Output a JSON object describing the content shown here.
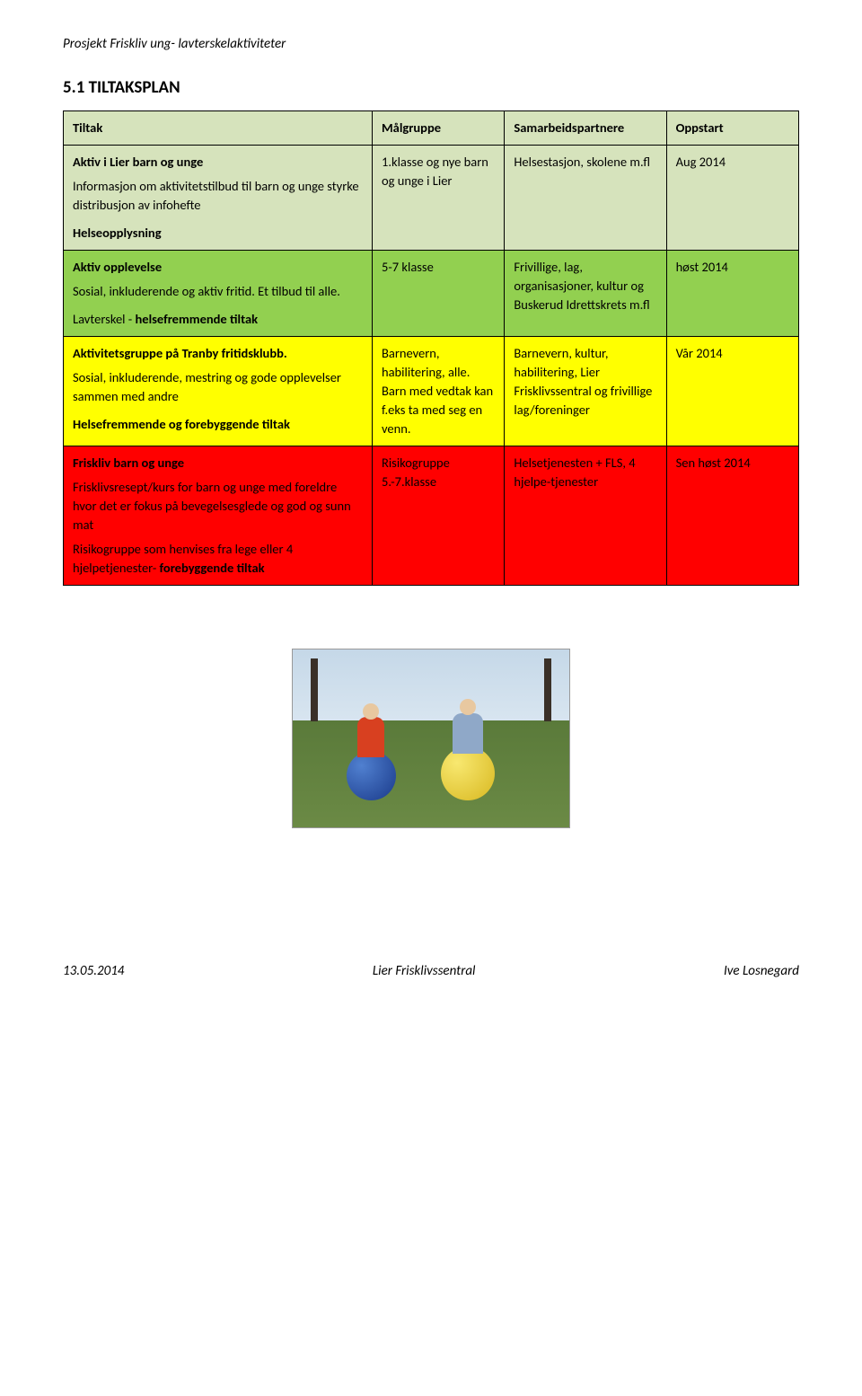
{
  "header": "Prosjekt Friskliv ung- lavterskelaktiviteter",
  "section_title": "5.1 TILTAKSPLAN",
  "table": {
    "head": {
      "c1": "Tiltak",
      "c2": "Målgruppe",
      "c3": "Samarbeidspartnere",
      "c4": "Oppstart"
    },
    "row_head_bg": "#d6e3bc",
    "rows": [
      {
        "bg": "#d6e3bc",
        "tiltak_title": "Aktiv i Lier barn og unge",
        "tiltak_body": "Informasjon om aktivitetstilbud til barn og unge styrke distribusjon av infohefte",
        "tiltak_sub": "Helseopplysning",
        "malgruppe": "1.klasse og nye barn og unge i Lier",
        "samarbeid": "Helsestasjon, skolene m.fl",
        "oppstart": "Aug 2014"
      },
      {
        "bg": "#92d050",
        "tiltak_title": "Aktiv opplevelse",
        "tiltak_body": "Sosial, inkluderende og aktiv fritid. Et tilbud til alle.",
        "tiltak_sub_prefix": "Lavterskel - ",
        "tiltak_sub": "helsefremmende tiltak",
        "malgruppe": "5-7 klasse",
        "samarbeid": "Frivillige, lag, organisasjoner, kultur og Buskerud Idrettskrets m.fl",
        "oppstart": "høst 2014"
      },
      {
        "bg": "#ffff00",
        "tiltak_title": "Aktivitetsgruppe på Tranby fritidsklubb.",
        "tiltak_body": "Sosial, inkluderende, mestring og gode opplevelser sammen med andre",
        "tiltak_sub": "Helsefremmende og forebyggende tiltak",
        "malgruppe": "Barnevern, habilitering, alle. Barn med vedtak kan f.eks ta med seg en venn.",
        "samarbeid": "Barnevern, kultur, habilitering, Lier Frisklivssentral og frivillige lag/foreninger",
        "oppstart": "Vår 2014"
      },
      {
        "bg": "#ff0000",
        "tiltak_title": "Friskliv barn og unge",
        "tiltak_body": "Frisklivsresept/kurs for barn og unge med foreldre hvor det er fokus på bevegelsesglede og god og sunn mat",
        "tiltak_body2_prefix": "Risikogruppe som henvises fra lege eller 4 hjelpetjenester- ",
        "tiltak_body2_bold": "forebyggende tiltak",
        "malgruppe": "Risikogruppe 5.-7.klasse",
        "samarbeid": "Helsetjenesten + FLS, 4 hjelpe-tjenester",
        "oppstart": "Sen høst 2014"
      }
    ]
  },
  "footer": {
    "left": "13.05.2014",
    "center": "Lier Frisklivssentral",
    "right": "Ive Losnegard"
  }
}
